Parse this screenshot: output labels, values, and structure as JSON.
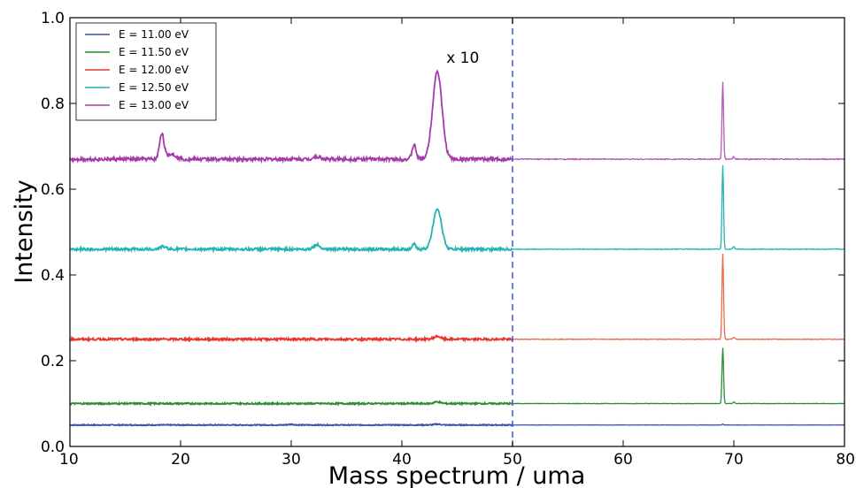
{
  "chart_data": {
    "type": "line",
    "xlabel": "Mass spectrum / uma",
    "ylabel": "Intensity",
    "xlim": [
      10,
      80
    ],
    "ylim": [
      0.0,
      1.0
    ],
    "x_ticks": [
      "10",
      "20",
      "30",
      "40",
      "50",
      "60",
      "70",
      "80"
    ],
    "y_ticks": [
      "0.0",
      "0.2",
      "0.4",
      "0.6",
      "0.8",
      "1.0"
    ],
    "legend_position": "top-left",
    "grid": false,
    "divider_x": 50,
    "annotation": {
      "text": "x 10",
      "x": 45.5,
      "y": 0.895
    },
    "series": [
      {
        "name": "E = 11.00 eV",
        "color": "#3f51a8",
        "right_color": "#3f51a8",
        "baseline": 0.05,
        "noise": 0.0012,
        "peaks": [
          [
            30,
            0.0015,
            0.3
          ],
          [
            43.2,
            0.002,
            0.3
          ],
          [
            69.0,
            0.002,
            0.08
          ]
        ]
      },
      {
        "name": "E = 11.50 eV",
        "color": "#2c8c34",
        "right_color": "#2c8c34",
        "baseline": 0.1,
        "noise": 0.0018,
        "peaks": [
          [
            43.2,
            0.004,
            0.3
          ],
          [
            69.0,
            0.13,
            0.07
          ],
          [
            70.0,
            0.004,
            0.08
          ]
        ]
      },
      {
        "name": "E = 12.00 eV",
        "color": "#e8362a",
        "right_color": "#f06a4a",
        "baseline": 0.25,
        "noise": 0.0025,
        "peaks": [
          [
            43.2,
            0.007,
            0.3
          ],
          [
            69.0,
            0.2,
            0.07
          ],
          [
            70.0,
            0.005,
            0.08
          ]
        ]
      },
      {
        "name": "E = 12.50 eV",
        "color": "#22b4b4",
        "right_color": "#22b4b4",
        "baseline": 0.46,
        "noise": 0.003,
        "peaks": [
          [
            18.4,
            0.006,
            0.3
          ],
          [
            32.3,
            0.01,
            0.3
          ],
          [
            41.1,
            0.012,
            0.15
          ],
          [
            43.2,
            0.095,
            0.38
          ],
          [
            69.0,
            0.195,
            0.07
          ],
          [
            70.0,
            0.006,
            0.08
          ]
        ]
      },
      {
        "name": "E = 13.00 eV",
        "color": "#a53aaa",
        "right_color": "#b45ab8",
        "baseline": 0.67,
        "noise": 0.004,
        "peaks": [
          [
            18.3,
            0.06,
            0.2
          ],
          [
            19.2,
            0.012,
            0.4
          ],
          [
            32.3,
            0.006,
            0.3
          ],
          [
            41.1,
            0.033,
            0.18
          ],
          [
            43.2,
            0.205,
            0.42
          ],
          [
            69.0,
            0.18,
            0.07
          ],
          [
            70.0,
            0.006,
            0.08
          ]
        ]
      }
    ]
  }
}
